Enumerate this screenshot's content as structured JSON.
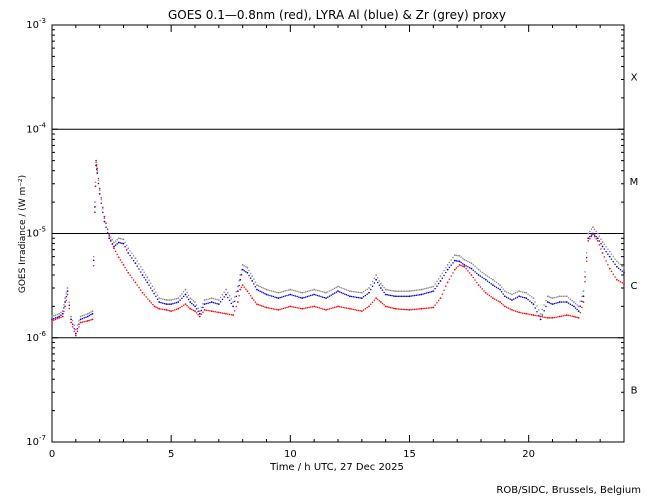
{
  "chart_data": {
    "type": "scatter",
    "title": "GOES 0.1—0.8nm (red), LYRA Al (blue) & Zr (grey) proxy",
    "xlabel": "Time / h UTC, 27 Dec 2025",
    "ylabel": "GOES Irradiance / (W m⁻²)",
    "x_range": [
      0,
      24
    ],
    "x_ticks": [
      0,
      5,
      10,
      15,
      20
    ],
    "x_tick_labels": [
      "0",
      "5",
      "10",
      "15",
      "20"
    ],
    "y_scale": "log",
    "y_range": [
      1e-07,
      0.001
    ],
    "y_ticks": [
      {
        "value": 1e-07,
        "base": "10",
        "exp": "-7"
      },
      {
        "value": 1e-06,
        "base": "10",
        "exp": "-6"
      },
      {
        "value": 1e-05,
        "base": "10",
        "exp": "-5"
      },
      {
        "value": 0.0001,
        "base": "10",
        "exp": "-4"
      },
      {
        "value": 0.001,
        "base": "10",
        "exp": "-3"
      }
    ],
    "flare_class_lines": [
      1e-06,
      1e-05,
      0.0001
    ],
    "flare_classes": [
      {
        "label": "B",
        "value": 3.2e-07
      },
      {
        "label": "C",
        "value": 3.2e-06
      },
      {
        "label": "M",
        "value": 3.2e-05
      },
      {
        "label": "X",
        "value": 0.00032
      }
    ],
    "series": [
      {
        "name": "red",
        "color": "#ff0000",
        "x": [
          0,
          0.3,
          0.45,
          0.55,
          0.65,
          0.8,
          1.0,
          1.2,
          1.5,
          1.7,
          1.8,
          1.85,
          1.9,
          2.0,
          2.2,
          2.4,
          2.6,
          2.8,
          3.0,
          3.2,
          3.5,
          3.8,
          4.1,
          4.3,
          4.5,
          4.8,
          5.0,
          5.3,
          5.6,
          5.8,
          6.0,
          6.2,
          6.4,
          6.7,
          7.0,
          7.3,
          7.6,
          7.8,
          7.9,
          8.0,
          8.2,
          8.4,
          8.6,
          9.0,
          9.5,
          10.0,
          10.5,
          11.0,
          11.5,
          12.0,
          12.5,
          13.0,
          13.3,
          13.6,
          13.8,
          14.0,
          14.4,
          15.0,
          15.5,
          16.0,
          16.3,
          16.6,
          16.9,
          17.1,
          17.3,
          17.6,
          17.9,
          18.2,
          18.5,
          18.8,
          19.0,
          19.3,
          19.6,
          19.9,
          20.2,
          20.5,
          20.8,
          21.0,
          21.3,
          21.6,
          21.9,
          22.1,
          22.3,
          22.5,
          22.7,
          22.9,
          23.1,
          23.4,
          23.7,
          24.0
        ],
        "y": [
          1.45e-06,
          1.55e-06,
          1.6e-06,
          2e-06,
          2.6e-06,
          1.4e-06,
          1.05e-06,
          1.4e-06,
          1.45e-06,
          1.5e-06,
          1.6e-05,
          5e-05,
          4.2e-05,
          2.7e-05,
          1.45e-05,
          9.5e-06,
          7.2e-06,
          5.9e-06,
          5e-06,
          4.2e-06,
          3.4e-06,
          2.7e-06,
          2.25e-06,
          2e-06,
          1.9e-06,
          1.85e-06,
          1.8e-06,
          1.9e-06,
          2.1e-06,
          1.9e-06,
          1.8e-06,
          1.6e-06,
          1.85e-06,
          1.8e-06,
          1.75e-06,
          1.7e-06,
          1.65e-06,
          2.2e-06,
          2.9e-06,
          3.2e-06,
          2.8e-06,
          2.4e-06,
          2.1e-06,
          1.95e-06,
          1.85e-06,
          2e-06,
          1.9e-06,
          2e-06,
          1.85e-06,
          2e-06,
          1.9e-06,
          1.8e-06,
          2e-06,
          2.4e-06,
          2.2e-06,
          2e-06,
          1.9e-06,
          1.85e-06,
          1.9e-06,
          1.95e-06,
          2.4e-06,
          3.4e-06,
          4.5e-06,
          5e-06,
          4.8e-06,
          4e-06,
          3.2e-06,
          2.7e-06,
          2.4e-06,
          2.2e-06,
          2e-06,
          1.85e-06,
          1.75e-06,
          1.7e-06,
          1.65e-06,
          1.6e-06,
          1.55e-06,
          1.55e-06,
          1.6e-06,
          1.65e-06,
          1.6e-06,
          1.55e-06,
          2.2e-06,
          8.5e-06,
          9.8e-06,
          8.5e-06,
          6.5e-06,
          4.6e-06,
          3.6e-06,
          3.3e-06
        ]
      },
      {
        "name": "blue",
        "color": "#0000dd",
        "x": [
          0,
          0.3,
          0.45,
          0.55,
          0.65,
          0.8,
          1.0,
          1.2,
          1.5,
          1.7,
          1.8,
          1.85,
          1.9,
          2.0,
          2.2,
          2.4,
          2.6,
          2.8,
          3.0,
          3.2,
          3.5,
          3.8,
          4.0,
          4.5,
          4.8,
          5.0,
          5.3,
          5.6,
          5.8,
          6.0,
          6.2,
          6.4,
          6.7,
          7.0,
          7.3,
          7.6,
          7.8,
          7.9,
          8.0,
          8.2,
          8.4,
          8.6,
          9.0,
          9.5,
          10.0,
          10.5,
          11.0,
          11.5,
          12.0,
          12.5,
          13.0,
          13.3,
          13.6,
          13.8,
          14.0,
          14.4,
          15.0,
          15.5,
          16.0,
          16.3,
          16.6,
          16.9,
          17.1,
          17.3,
          17.6,
          17.9,
          18.2,
          18.5,
          18.8,
          19.0,
          19.3,
          19.6,
          19.9,
          20.2,
          20.5,
          20.8,
          21.0,
          21.3,
          21.6,
          21.9,
          22.1,
          22.3,
          22.5,
          22.7,
          22.9,
          23.1,
          23.4,
          23.7,
          24.0
        ],
        "y": [
          1.5e-06,
          1.6e-06,
          1.7e-06,
          2.2e-06,
          2.8e-06,
          1.5e-06,
          1.1e-06,
          1.5e-06,
          1.6e-06,
          1.7e-06,
          1.8e-05,
          4.5e-05,
          3.8e-05,
          2.4e-05,
          1.3e-05,
          9e-06,
          7.5e-06,
          8.2e-06,
          8e-06,
          6.5e-06,
          5.2e-06,
          4e-06,
          3.4e-06,
          2.2e-06,
          2.1e-06,
          2.1e-06,
          2.2e-06,
          2.6e-06,
          2.2e-06,
          2e-06,
          1.7e-06,
          2.1e-06,
          2.2e-06,
          2.1e-06,
          2.6e-06,
          2e-06,
          2.8e-06,
          3.6e-06,
          4.5e-06,
          4.2e-06,
          3.5e-06,
          2.9e-06,
          2.6e-06,
          2.4e-06,
          2.6e-06,
          2.4e-06,
          2.6e-06,
          2.4e-06,
          2.8e-06,
          2.5e-06,
          2.4e-06,
          2.7e-06,
          3.6e-06,
          3e-06,
          2.6e-06,
          2.5e-06,
          2.5e-06,
          2.6e-06,
          2.8e-06,
          3.5e-06,
          4.5e-06,
          5.5e-06,
          5.4e-06,
          5e-06,
          4.6e-06,
          4e-06,
          3.6e-06,
          3.2e-06,
          2.9e-06,
          2.5e-06,
          2.3e-06,
          2.5e-06,
          2.4e-06,
          2.1e-06,
          1.5e-06,
          2.2e-06,
          2.1e-06,
          2.2e-06,
          2.2e-06,
          2e-06,
          1.8e-06,
          2.5e-06,
          9e-06,
          1e-05,
          9e-06,
          7.5e-06,
          6e-06,
          4.8e-06,
          4.2e-06
        ]
      },
      {
        "name": "grey",
        "color": "#888888",
        "x": [
          0,
          0.3,
          0.45,
          0.55,
          0.65,
          0.8,
          1.0,
          1.2,
          1.5,
          1.7,
          1.8,
          1.85,
          1.9,
          2.0,
          2.2,
          2.4,
          2.6,
          2.8,
          3.0,
          3.2,
          3.5,
          3.8,
          4.0,
          4.5,
          4.8,
          5.0,
          5.3,
          5.6,
          5.8,
          6.0,
          6.2,
          6.4,
          6.7,
          7.0,
          7.3,
          7.6,
          7.8,
          7.9,
          8.0,
          8.2,
          8.4,
          8.6,
          9.0,
          9.5,
          10.0,
          10.5,
          11.0,
          11.5,
          12.0,
          12.5,
          13.0,
          13.3,
          13.6,
          13.8,
          14.0,
          14.4,
          15.0,
          15.5,
          16.0,
          16.3,
          16.6,
          16.9,
          17.1,
          17.3,
          17.6,
          17.9,
          18.2,
          18.5,
          18.8,
          19.0,
          19.3,
          19.6,
          19.9,
          20.2,
          20.5,
          20.8,
          21.0,
          21.3,
          21.6,
          21.9,
          22.1,
          22.3,
          22.5,
          22.7,
          22.9,
          23.1,
          23.4,
          23.7,
          24.0
        ],
        "y": [
          1.6e-06,
          1.7e-06,
          1.8e-06,
          2.4e-06,
          3e-06,
          1.6e-06,
          1.2e-06,
          1.6e-06,
          1.7e-06,
          1.8e-06,
          2e-05,
          4.8e-05,
          4e-05,
          2.6e-05,
          1.4e-05,
          9.8e-06,
          8.2e-06,
          9e-06,
          8.8e-06,
          7.2e-06,
          5.8e-06,
          4.5e-06,
          3.8e-06,
          2.4e-06,
          2.3e-06,
          2.3e-06,
          2.4e-06,
          2.9e-06,
          2.4e-06,
          2.2e-06,
          1.8e-06,
          2.3e-06,
          2.4e-06,
          2.3e-06,
          2.9e-06,
          2.2e-06,
          3.1e-06,
          4e-06,
          5e-06,
          4.7e-06,
          3.9e-06,
          3.2e-06,
          2.9e-06,
          2.7e-06,
          2.9e-06,
          2.7e-06,
          2.9e-06,
          2.7e-06,
          3.1e-06,
          2.8e-06,
          2.7e-06,
          3e-06,
          4e-06,
          3.3e-06,
          2.9e-06,
          2.8e-06,
          2.8e-06,
          2.9e-06,
          3.1e-06,
          3.9e-06,
          5e-06,
          6.2e-06,
          6.1e-06,
          5.6e-06,
          5.2e-06,
          4.5e-06,
          4e-06,
          3.6e-06,
          3.2e-06,
          2.8e-06,
          2.6e-06,
          2.8e-06,
          2.7e-06,
          2.4e-06,
          1.7e-06,
          2.5e-06,
          2.4e-06,
          2.5e-06,
          2.5e-06,
          2.2e-06,
          2e-06,
          2.8e-06,
          1e-05,
          1.15e-05,
          1e-05,
          8.3e-06,
          6.7e-06,
          5.4e-06,
          4.7e-06
        ]
      }
    ],
    "grid": false,
    "legend": "none"
  },
  "footer": {
    "credit": "ROB/SIDC, Brussels, Belgium"
  }
}
